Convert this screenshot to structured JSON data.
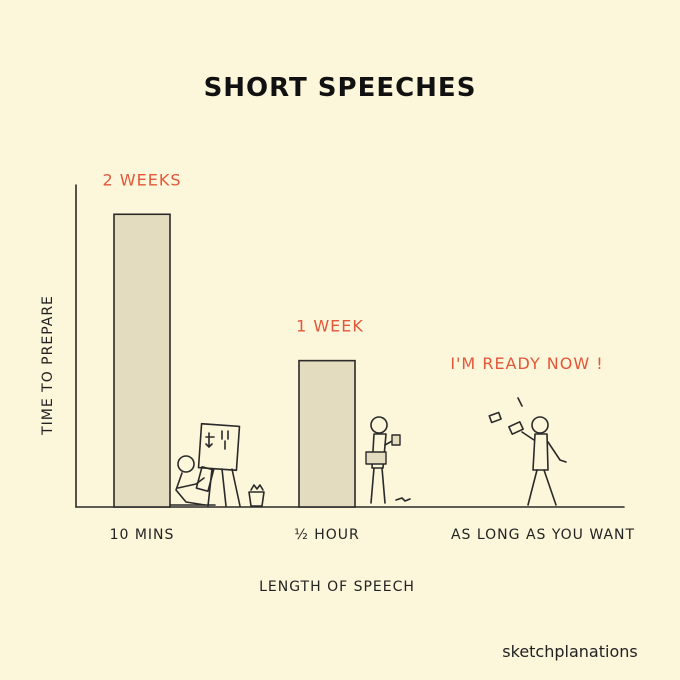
{
  "chart_data": {
    "type": "bar",
    "title": "SHORT SPEECHES",
    "xlabel": "LENGTH OF SPEECH",
    "ylabel": "TIME TO PREPARE",
    "categories": [
      "10 MINS",
      "½ HOUR",
      "AS LONG AS YOU WANT"
    ],
    "values": [
      2,
      1,
      0
    ],
    "data_labels": [
      "2 WEEKS",
      "1 WEEK",
      "I'M READY NOW !"
    ],
    "ylim": [
      0,
      2.2
    ],
    "grid": false,
    "bar_color": "#e4dcbf",
    "label_color": "#e2573a"
  },
  "credit": "sketchplanations",
  "icons": {
    "figure_1": "person-writing-at-flipchart-icon",
    "figure_2": "person-holding-notes-icon",
    "figure_3": "person-tossing-cards-icon"
  }
}
